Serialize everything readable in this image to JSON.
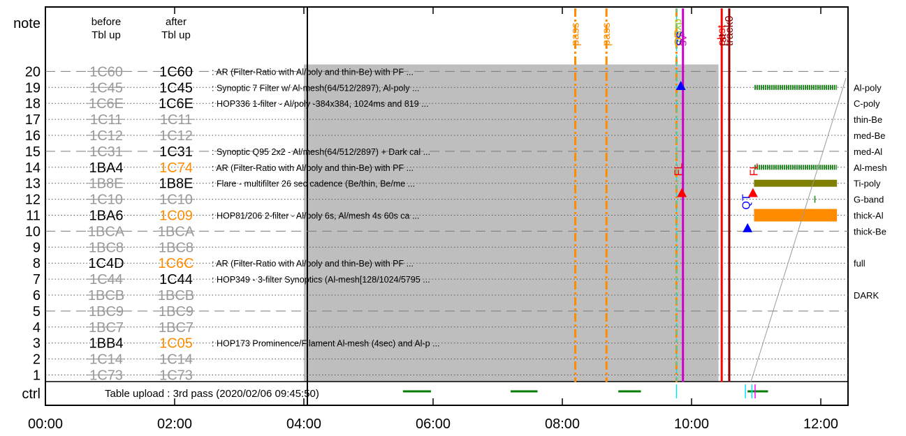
{
  "chart_data": {
    "type": "timeline",
    "left_panel": {
      "note_label": "note",
      "before_header": [
        "before",
        "Tbl up"
      ],
      "after_header": [
        "after",
        "Tbl up"
      ],
      "ctrl_label": "ctrl",
      "ctrl_text": "Table upload : 3rd pass (2020/02/06 09:45:50)"
    },
    "x_axis": {
      "range": [
        "00:00",
        "12:15"
      ],
      "ticks": [
        "00:00",
        "02:00",
        "04:00",
        "06:00",
        "08:00",
        "10:00",
        "12:00"
      ]
    },
    "rows": [
      {
        "n": "20",
        "before": "1C60",
        "before_state": "struck",
        "after": "1C60",
        "after_state": "normal",
        "desc": ": AR (Filter-Ratio with Al/poly and thin-Be) with PF ..."
      },
      {
        "n": "19",
        "before": "1C45",
        "before_state": "struck",
        "after": "1C45",
        "after_state": "normal",
        "desc": ": Synoptic 7 Filter w/ Al-mesh(64/512/2897), Al-poly ..."
      },
      {
        "n": "18",
        "before": "1C6E",
        "before_state": "struck",
        "after": "1C6E",
        "after_state": "normal",
        "desc": ": HOP336 1-filter - Al/poly -384x384, 1024ms and 819 ..."
      },
      {
        "n": "17",
        "before": "1C11",
        "before_state": "struck",
        "after": "1C11",
        "after_state": "struck",
        "desc": ""
      },
      {
        "n": "16",
        "before": "1C12",
        "before_state": "struck",
        "after": "1C12",
        "after_state": "struck",
        "desc": ""
      },
      {
        "n": "15",
        "before": "1C31",
        "before_state": "struck",
        "after": "1C31",
        "after_state": "normal",
        "desc": ": Synoptic Q95 2x2 - Al/mesh(64/512/2897) + Dark cal ..."
      },
      {
        "n": "14",
        "before": "1BA4",
        "before_state": "normal",
        "after": "1C74",
        "after_state": "changed",
        "desc": ": AR (Filter-Ratio with Al/poly and thin-Be) with PF ..."
      },
      {
        "n": "13",
        "before": "1B8E",
        "before_state": "struck",
        "after": "1B8E",
        "after_state": "normal",
        "desc": ": Flare - multifilter 26 sec cadence (Be/thin, Be/me ..."
      },
      {
        "n": "12",
        "before": "1C10",
        "before_state": "struck",
        "after": "1C10",
        "after_state": "struck",
        "desc": ""
      },
      {
        "n": "11",
        "before": "1BA6",
        "before_state": "normal",
        "after": "1C09",
        "after_state": "changed",
        "desc": ": HOP81/206 2-filter - Al/poly 6s, Al/mesh 4s 60s ca ..."
      },
      {
        "n": "10",
        "before": "1BCA",
        "before_state": "struck",
        "after": "1BCA",
        "after_state": "struck",
        "desc": ""
      },
      {
        "n": "9",
        "before": "1BC8",
        "before_state": "struck",
        "after": "1BC8",
        "after_state": "struck",
        "desc": ""
      },
      {
        "n": "8",
        "before": "1C4D",
        "before_state": "normal",
        "after": "1C6C",
        "after_state": "changed",
        "desc": ": AR (Filter-Ratio with Al/poly and thin-Be) with PF ..."
      },
      {
        "n": "7",
        "before": "1C44",
        "before_state": "struck",
        "after": "1C44",
        "after_state": "normal",
        "desc": ": HOP349 - 3-filter Synoptics (Al-mesh[128/1024/5795 ..."
      },
      {
        "n": "6",
        "before": "1BCB",
        "before_state": "struck",
        "after": "1BCB",
        "after_state": "struck",
        "desc": ""
      },
      {
        "n": "5",
        "before": "1BC9",
        "before_state": "struck",
        "after": "1BC9",
        "after_state": "struck",
        "desc": ""
      },
      {
        "n": "4",
        "before": "1BC7",
        "before_state": "struck",
        "after": "1BC7",
        "after_state": "struck",
        "desc": ""
      },
      {
        "n": "3",
        "before": "1BB4",
        "before_state": "normal",
        "after": "1C05",
        "after_state": "changed",
        "desc": ": HOP173 Prominence/Filament Al-mesh (4sec) and Al-p ..."
      },
      {
        "n": "2",
        "before": "1C14",
        "before_state": "struck",
        "after": "1C14",
        "after_state": "struck",
        "desc": ""
      },
      {
        "n": "1",
        "before": "1C73",
        "before_state": "struck",
        "after": "1C73",
        "after_state": "struck",
        "desc": ""
      }
    ],
    "dashed_rows": [
      "20",
      "15",
      "10",
      "5"
    ],
    "shaded_region": {
      "start": "04:00",
      "end": "10:25",
      "row_top": "20",
      "row_bottom": "1"
    },
    "vertical_events": [
      {
        "time": "08:12",
        "label": "pass",
        "color": "#ff8c00",
        "style": "dashdot"
      },
      {
        "time": "08:41",
        "label": "pass",
        "color": "#ff8c00",
        "style": "dashdot"
      },
      {
        "time": "09:46",
        "label": "",
        "color": "#ff8c00",
        "style": "dashdot"
      },
      {
        "time": "09:46",
        "label": "",
        "color": "#00e5ee",
        "style": "dashed"
      },
      {
        "time": "09:47",
        "label": "maxp",
        "color": "#9acd32",
        "style": "none"
      },
      {
        "time": "09:48",
        "label": "QT",
        "color": "#ff8c00",
        "style": "none"
      },
      {
        "time": "09:50",
        "label": "SS",
        "color": "#0000ff",
        "style": "none"
      },
      {
        "time": "09:52",
        "label": "sv",
        "color": "#cc00cc",
        "style": "solid"
      },
      {
        "time": "10:28",
        "label": "obst",
        "color": "#ff0000",
        "style": "solid"
      },
      {
        "time": "10:29",
        "label": "rst",
        "color": "#8b0000",
        "style": "none"
      },
      {
        "time": "10:35",
        "label": "track0",
        "color": "#8b0000",
        "style": "solid"
      }
    ],
    "text_marks": [
      {
        "time": "09:48",
        "row": "13.8",
        "label": "FL",
        "color": "#ff0000"
      },
      {
        "time": "10:58",
        "row": "13.8",
        "label": "FL",
        "color": "#ff0000"
      },
      {
        "time": "10:51",
        "row": "11.7",
        "label": "QT",
        "color": "#0000ff"
      }
    ],
    "triangles": [
      {
        "time": "09:50",
        "row": "19.1",
        "color": "#0000ff"
      },
      {
        "time": "09:51",
        "row": "12.4",
        "color": "#ff0000"
      },
      {
        "time": "10:57",
        "row": "12.4",
        "color": "#ff0000"
      },
      {
        "time": "10:52",
        "row": "10.2",
        "color": "#0000ff"
      }
    ],
    "filter_legend": [
      "Al-poly",
      "C-poly",
      "thin-Be",
      "med-Be",
      "med-Al",
      "Al-mesh",
      "Ti-poly",
      "G-band",
      "thick-Al",
      "thick-Be",
      "full",
      "DARK"
    ],
    "filter_bars": [
      {
        "filter": "Al-poly",
        "start": "10:58",
        "end": "12:15",
        "color": "#228b22",
        "style": "hatched"
      },
      {
        "filter": "Al-mesh",
        "start": "10:58",
        "end": "12:15",
        "color": "#228b22",
        "style": "hatched"
      },
      {
        "filter": "Ti-poly",
        "start": "10:58",
        "end": "12:15",
        "color": "#808000",
        "style": "solid"
      },
      {
        "filter": "G-band",
        "start": "11:54",
        "end": "11:55",
        "color": "#228b22",
        "style": "solid"
      },
      {
        "filter": "thick-Al",
        "start": "10:58",
        "end": "12:15",
        "color": "#ff8c00",
        "style": "solid"
      }
    ],
    "ctrl_segments": [
      {
        "start": "05:32",
        "end": "05:58",
        "color": "#007f00"
      },
      {
        "start": "07:12",
        "end": "07:37",
        "color": "#007f00"
      },
      {
        "start": "08:52",
        "end": "09:13",
        "color": "#007f00"
      },
      {
        "start": "10:52",
        "end": "11:11",
        "color": "#007f00"
      }
    ],
    "ctrl_ticks": [
      {
        "time": "09:46",
        "color": "#00e5ee"
      },
      {
        "time": "10:50",
        "color": "#00e5ee"
      },
      {
        "time": "10:56",
        "color": "#00e5ee"
      },
      {
        "time": "10:59",
        "color": "#ff00ff"
      }
    ]
  }
}
